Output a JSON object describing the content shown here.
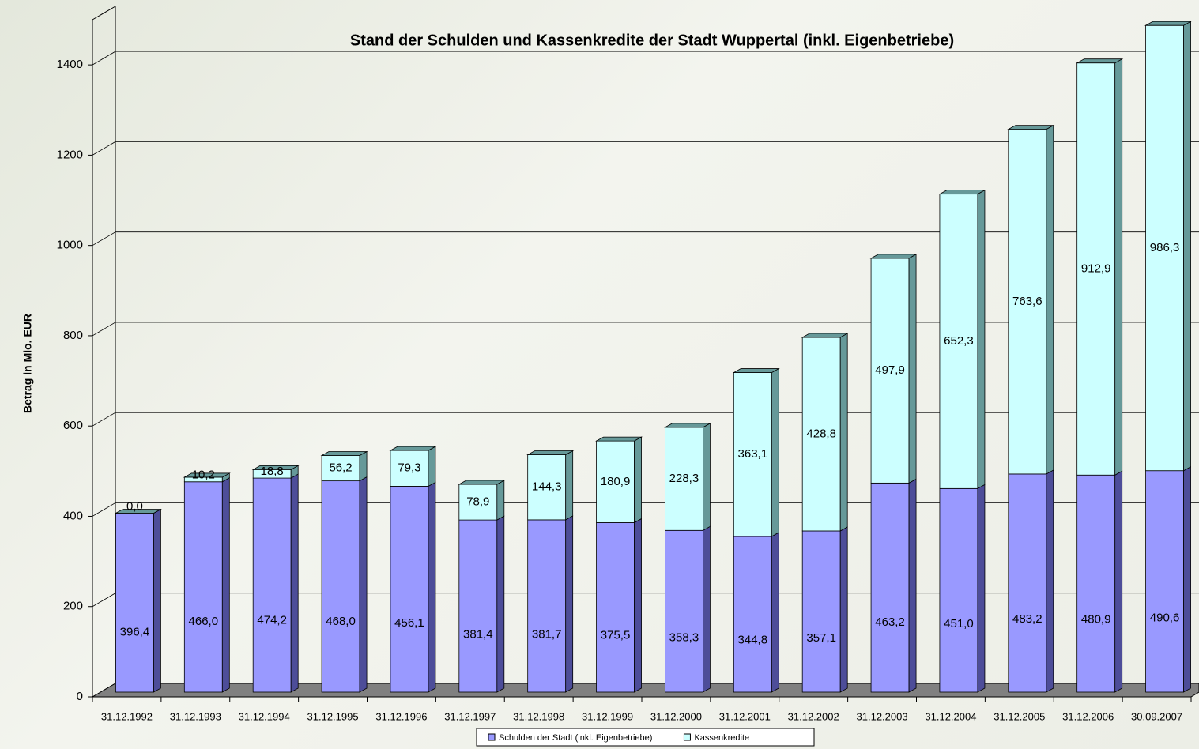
{
  "chart_data": {
    "type": "bar3d_stacked",
    "title": "Stand der Schulden und Kassenkredite der Stadt Wuppertal (inkl. Eigenbetriebe)",
    "ylabel": "Betrag in Mio. EUR",
    "categories": [
      "31.12.1992",
      "31.12.1993",
      "31.12.1994",
      "31.12.1995",
      "31.12.1996",
      "31.12.1997",
      "31.12.1998",
      "31.12.1999",
      "31.12.2000",
      "31.12.2001",
      "31.12.2002",
      "31.12.2003",
      "31.12.2004",
      "31.12.2005",
      "31.12.2006",
      "30.09.2007"
    ],
    "series": [
      {
        "name": "Schulden der Stadt (inkl. Eigenbetriebe)",
        "color": "#9999ff",
        "side": "#4d4d99",
        "values": [
          396.4,
          466.0,
          474.2,
          468.0,
          456.1,
          381.4,
          381.7,
          375.5,
          358.3,
          344.8,
          357.1,
          463.2,
          451.0,
          483.2,
          480.9,
          490.6
        ],
        "value_labels": [
          "396,4",
          "466,0",
          "474,2",
          "468,0",
          "456,1",
          "381,4",
          "381,7",
          "375,5",
          "358,3",
          "344,8",
          "357,1",
          "463,2",
          "451,0",
          "483,2",
          "480,9",
          "490,6"
        ]
      },
      {
        "name": "Kassenkredite",
        "color": "#ccffff",
        "side": "#669999",
        "values": [
          0.0,
          10.2,
          18.8,
          56.2,
          79.3,
          78.9,
          144.3,
          180.9,
          228.3,
          363.1,
          428.8,
          497.9,
          652.3,
          763.6,
          912.9,
          986.3
        ],
        "value_labels": [
          "0,0",
          "10,2",
          "18,8",
          "56,2",
          "79,3",
          "78,9",
          "144,3",
          "180,9",
          "228,3",
          "363,1",
          "428,8",
          "497,9",
          "652,3",
          "763,6",
          "912,9",
          "986,3"
        ]
      }
    ],
    "ylim": [
      0,
      1500
    ],
    "yticks": [
      0,
      200,
      400,
      600,
      800,
      1000,
      1200,
      1400
    ],
    "grid": true,
    "legend": "bottom"
  }
}
